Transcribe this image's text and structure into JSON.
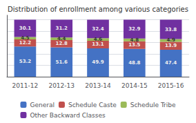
{
  "chart_data": {
    "type": "bar",
    "title": "Distribution of enrollment among various categories",
    "categories": [
      "2011-12",
      "2012-13",
      "2013-14",
      "2014-15",
      "2015-16"
    ],
    "series": [
      {
        "name": "General",
        "color": "#4472C4",
        "values": [
          53.2,
          51.6,
          49.9,
          48.8,
          47.4
        ]
      },
      {
        "name": "Schedule Caste",
        "color": "#C0504D",
        "values": [
          12.2,
          12.8,
          13.1,
          13.5,
          13.9
        ]
      },
      {
        "name": "Schedule Tribe",
        "color": "#9BBB59",
        "values": [
          4.5,
          4.4,
          4.6,
          4.8,
          4.9
        ]
      },
      {
        "name": "Other Backward Classes",
        "color": "#7030A0",
        "values": [
          30.1,
          31.2,
          32.4,
          32.9,
          33.8
        ]
      }
    ],
    "stacked": true,
    "data_labels": true,
    "ylim": [
      0,
      108
    ],
    "yticks": [
      0,
      20,
      40,
      60,
      80,
      100
    ],
    "grid": true,
    "tick_labels": "x",
    "legend": "bottom"
  }
}
